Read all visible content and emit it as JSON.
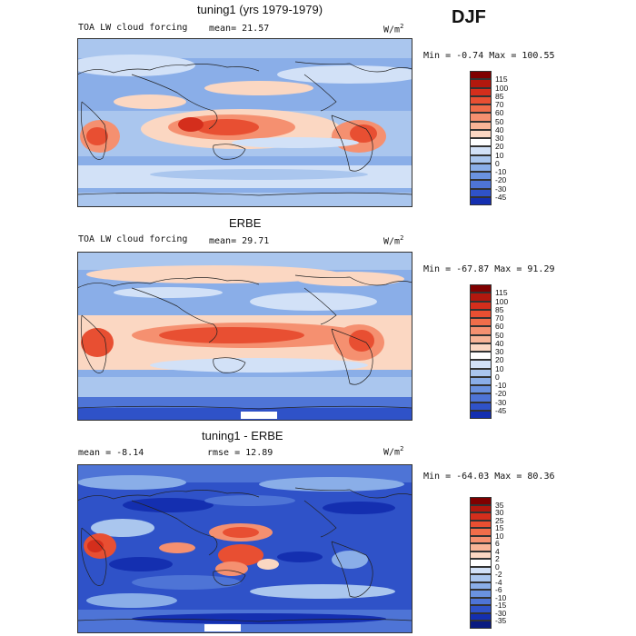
{
  "season": "DJF",
  "panels": [
    {
      "title": "tuning1 (yrs 1979-1979)",
      "left_label": "TOA LW cloud forcing",
      "mean_label": "mean=",
      "mean_value": "21.57",
      "units": "W/m",
      "units_exp": "2",
      "stats": "Min =  -0.74 Max = 100.55"
    },
    {
      "title": "ERBE",
      "left_label": "TOA LW cloud forcing",
      "mean_label": "mean=",
      "mean_value": "29.71",
      "units": "W/m",
      "units_exp": "2",
      "stats": "Min = -67.87 Max =  91.29"
    },
    {
      "title": "tuning1 - ERBE",
      "left_label": "mean =   -8.14",
      "rmse_label": "rmse =",
      "rmse_value": "12.89",
      "units": "W/m",
      "units_exp": "2",
      "stats": "Min = -64.03 Max =  80.36"
    }
  ],
  "colorbars": [
    {
      "labels": [
        "115",
        "100",
        "85",
        "70",
        "60",
        "50",
        "40",
        "30",
        "20",
        "10",
        "0",
        "-10",
        "-20",
        "-30",
        "-45"
      ],
      "colors": [
        "#7f0000",
        "#b2180e",
        "#d42e1c",
        "#e84f32",
        "#f06d4a",
        "#f59070",
        "#f8b497",
        "#fbd7c2",
        "#ffffff",
        "#d2e1f7",
        "#aac6ee",
        "#8aaee8",
        "#6a92e0",
        "#4e74d6",
        "#2f52c8",
        "#142fb0"
      ]
    },
    {
      "labels": [
        "115",
        "100",
        "85",
        "70",
        "60",
        "50",
        "40",
        "30",
        "20",
        "10",
        "0",
        "-10",
        "-20",
        "-30",
        "-45"
      ],
      "colors": [
        "#7f0000",
        "#b2180e",
        "#d42e1c",
        "#e84f32",
        "#f06d4a",
        "#f59070",
        "#f8b497",
        "#fbd7c2",
        "#ffffff",
        "#d2e1f7",
        "#aac6ee",
        "#8aaee8",
        "#6a92e0",
        "#4e74d6",
        "#2f52c8",
        "#142fb0"
      ]
    },
    {
      "labels": [
        "35",
        "30",
        "25",
        "15",
        "10",
        "6",
        "4",
        "2",
        "0",
        "-2",
        "-4",
        "-6",
        "-10",
        "-15",
        "-30",
        "-35"
      ],
      "colors": [
        "#7f0000",
        "#b2180e",
        "#d42e1c",
        "#e84f32",
        "#f06d4a",
        "#f59070",
        "#f8b497",
        "#fbd7c2",
        "#ffffff",
        "#d2e1f7",
        "#aac6ee",
        "#8aaee8",
        "#6a92e0",
        "#4e74d6",
        "#2f52c8",
        "#142fb0",
        "#0a1a80"
      ]
    }
  ],
  "chart_data": [
    {
      "type": "heatmap",
      "title": "tuning1 (yrs 1979-1979)",
      "variable": "TOA LW cloud forcing",
      "units": "W/m^2",
      "mean": 21.57,
      "min": -0.74,
      "max": 100.55,
      "levels": [
        -45,
        -30,
        -20,
        -10,
        0,
        10,
        20,
        30,
        40,
        50,
        60,
        70,
        85,
        100,
        115
      ]
    },
    {
      "type": "heatmap",
      "title": "ERBE",
      "variable": "TOA LW cloud forcing",
      "units": "W/m^2",
      "mean": 29.71,
      "min": -67.87,
      "max": 91.29,
      "levels": [
        -45,
        -30,
        -20,
        -10,
        0,
        10,
        20,
        30,
        40,
        50,
        60,
        70,
        85,
        100,
        115
      ]
    },
    {
      "type": "heatmap",
      "title": "tuning1 - ERBE",
      "units": "W/m^2",
      "mean": -8.14,
      "rmse": 12.89,
      "min": -64.03,
      "max": 80.36,
      "levels": [
        -35,
        -30,
        -15,
        -10,
        -6,
        -4,
        -2,
        0,
        2,
        4,
        6,
        10,
        15,
        25,
        30,
        35
      ]
    }
  ]
}
